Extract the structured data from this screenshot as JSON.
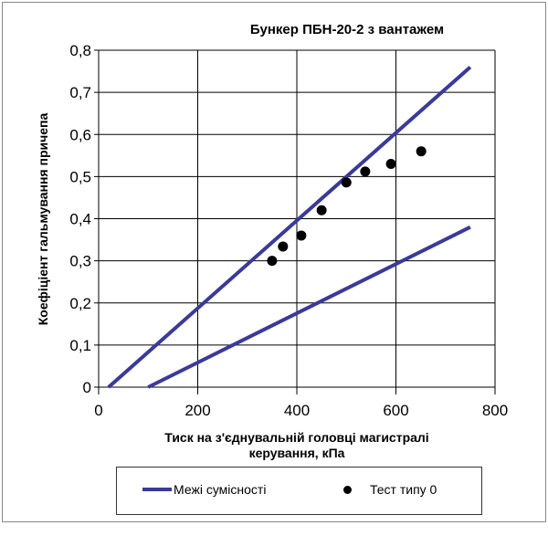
{
  "chart_data": {
    "type": "scatter",
    "title": "Бункер  ПБН-20-2  з вантажем",
    "xlabel_lines": [
      "Тиск на з'єднувальній головці магистралі",
      "керування, кПа"
    ],
    "ylabel": "Коефіціент гальмування причепа",
    "xlim": [
      0,
      800
    ],
    "ylim": [
      0,
      0.8
    ],
    "x_ticks": [
      "0",
      "200",
      "400",
      "600",
      "800"
    ],
    "y_ticks": [
      "0",
      "0,1",
      "0,2",
      "0,3",
      "0,4",
      "0,5",
      "0,6",
      "0,7",
      "0,8"
    ],
    "grid": true,
    "legend_position": "bottom",
    "series": [
      {
        "name": "Межі сумісності",
        "kind": "line",
        "color": "#3a3a9a",
        "lines": [
          [
            [
              20,
              0
            ],
            [
              750,
              0.76
            ]
          ],
          [
            [
              100,
              0
            ],
            [
              750,
              0.38
            ]
          ]
        ]
      },
      {
        "name": "Тест типу 0",
        "kind": "scatter",
        "color": "#000000",
        "points": [
          [
            350,
            0.3
          ],
          [
            372,
            0.334
          ],
          [
            409,
            0.36
          ],
          [
            450,
            0.42
          ],
          [
            500,
            0.486
          ],
          [
            538,
            0.512
          ],
          [
            590,
            0.53
          ],
          [
            651,
            0.56
          ]
        ]
      }
    ]
  }
}
